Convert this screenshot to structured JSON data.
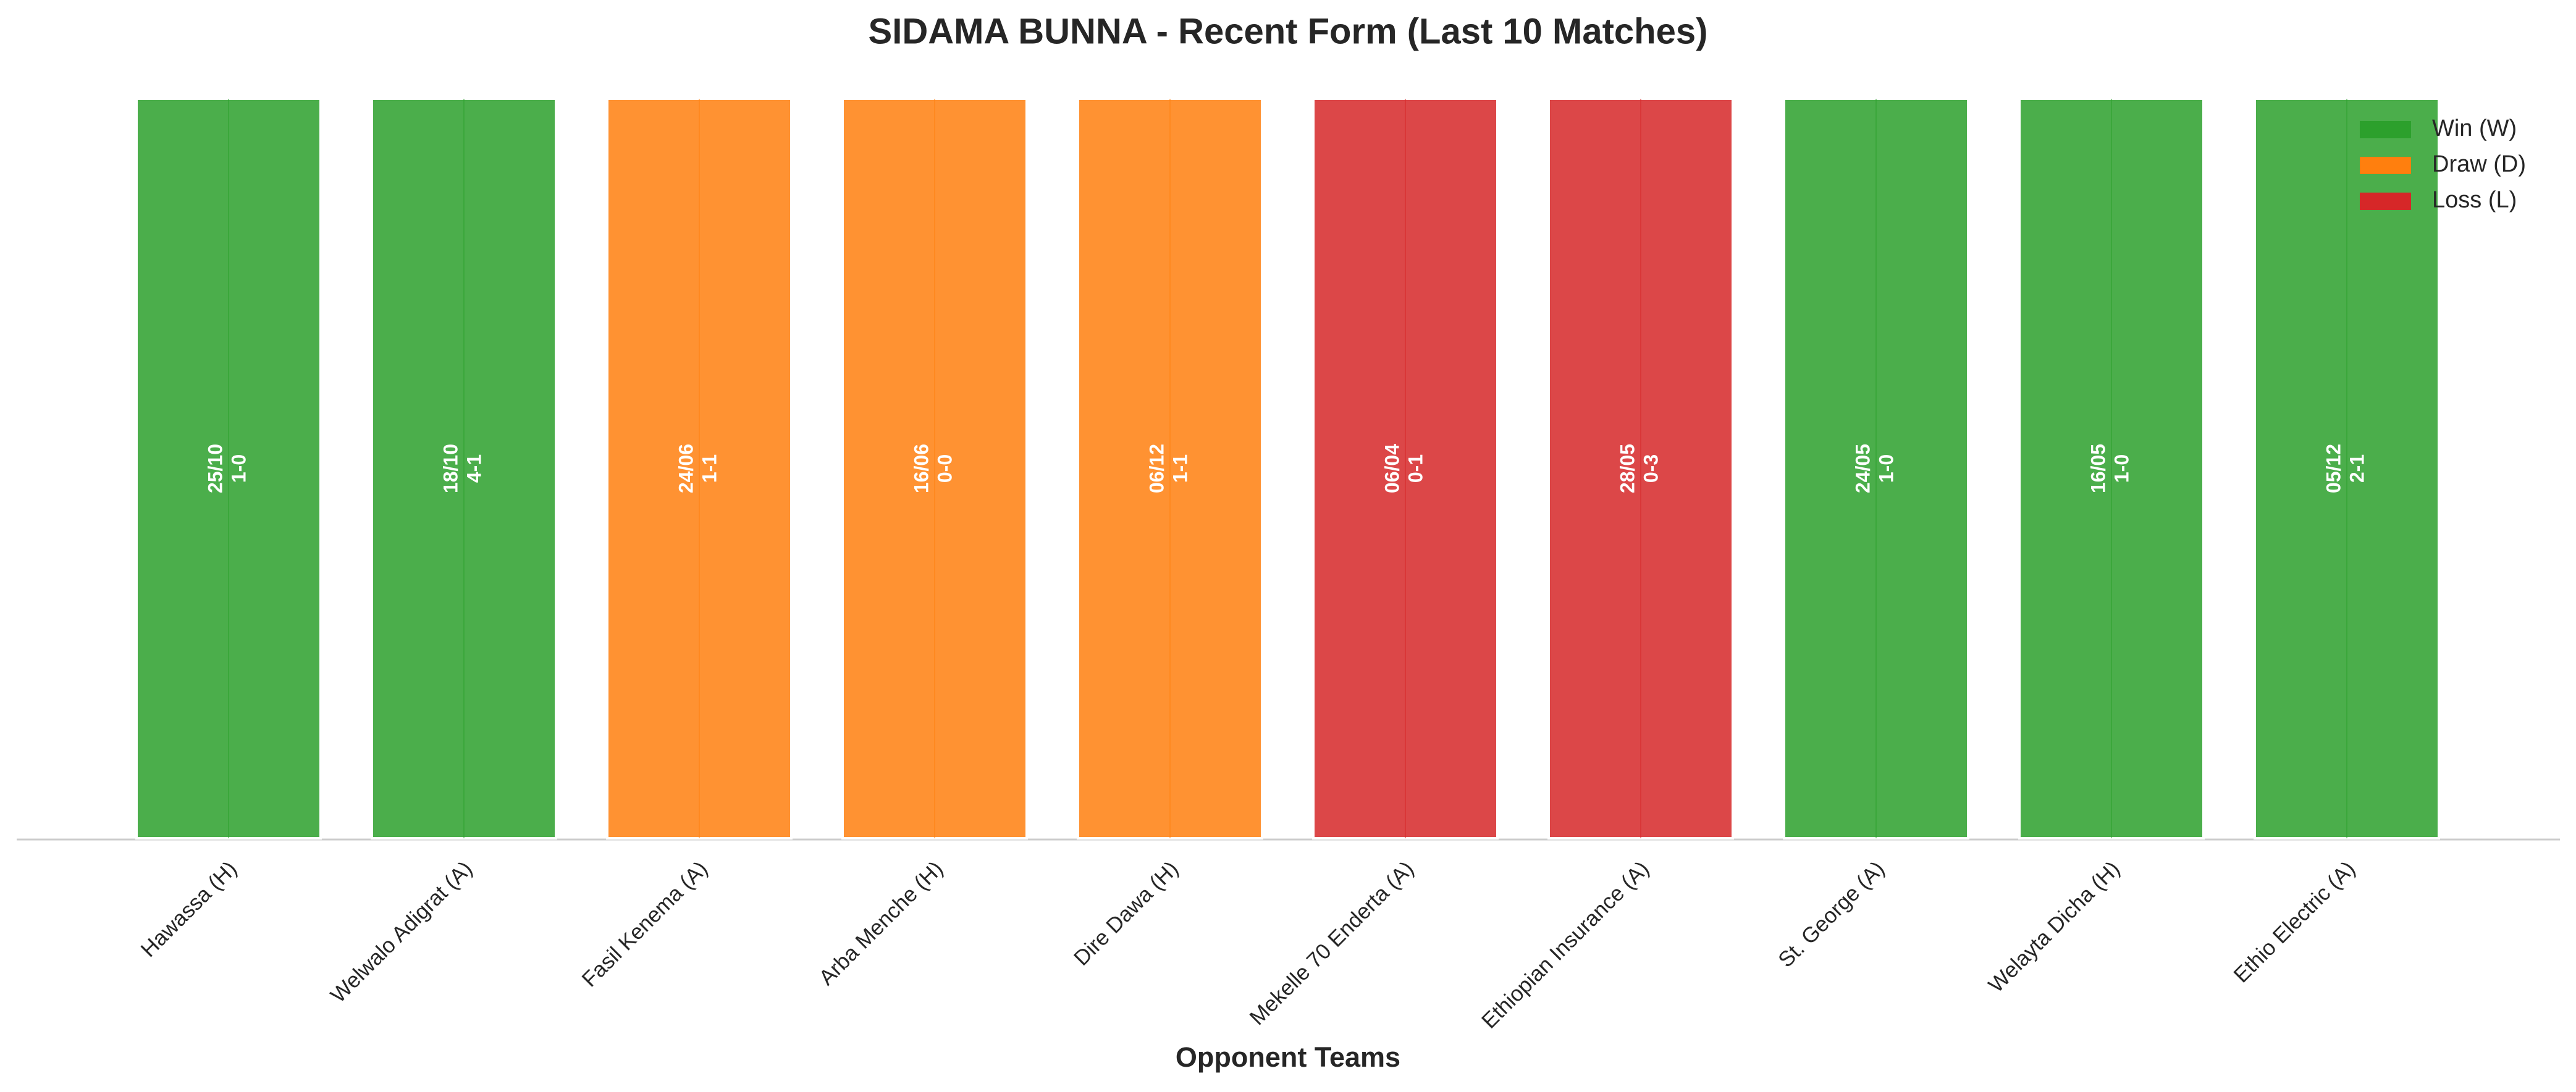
{
  "chart_data": {
    "type": "bar",
    "title": "SIDAMA BUNNA - Recent Form (Last 10 Matches)",
    "xlabel": "Opponent Teams",
    "categories": [
      "Hawassa (H)",
      "Welwalo Adigrat (A)",
      "Fasil Kenema (A)",
      "Arba Menche (H)",
      "Dire Dawa (H)",
      "Mekelle 70 Enderta (A)",
      "Ethiopian Insurance (A)",
      "St. George (A)",
      "Welayta Dicha (H)",
      "Ethio Electric (A)"
    ],
    "values": [
      1,
      1,
      1,
      1,
      1,
      1,
      1,
      1,
      1,
      1
    ],
    "dates": [
      "25/10",
      "18/10",
      "24/06",
      "16/06",
      "06/12",
      "06/04",
      "28/05",
      "24/05",
      "16/05",
      "05/12"
    ],
    "scores": [
      "1-0",
      "4-1",
      "1-1",
      "0-0",
      "1-1",
      "0-1",
      "0-3",
      "1-0",
      "1-0",
      "2-1"
    ],
    "colors": [
      "#2ca02c",
      "#2ca02c",
      "#ff7f0e",
      "#ff7f0e",
      "#ff7f0e",
      "#d62728",
      "#d62728",
      "#2ca02c",
      "#2ca02c",
      "#2ca02c"
    ],
    "ylim": [
      0,
      1
    ],
    "legend_position": "upper right",
    "legend": [
      {
        "name": "Win (W)",
        "color": "#2ca02c"
      },
      {
        "name": "Draw (D)",
        "color": "#ff7f0e"
      },
      {
        "name": "Loss (L)",
        "color": "#d62728"
      }
    ]
  }
}
